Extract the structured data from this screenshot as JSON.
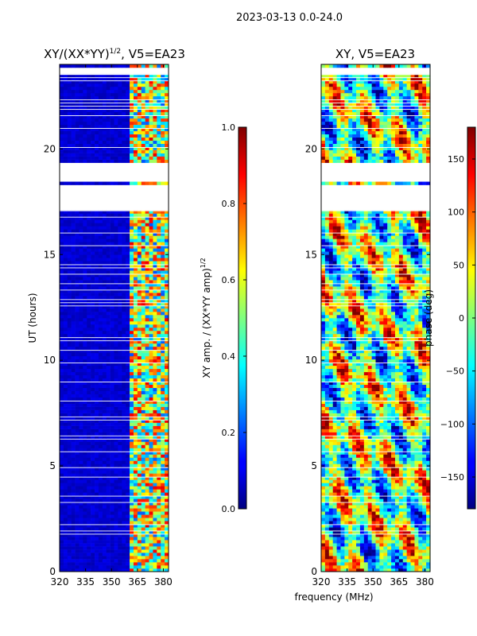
{
  "figure": {
    "suptitle": "2023-03-13 0.0-24.0",
    "shared_xlabel": "frequency (MHz)"
  },
  "chart_data": [
    {
      "type": "heatmap",
      "title_main": "XY/(XX*YY)",
      "title_sup": "1/2",
      "title_rest": ", V5=EA23",
      "xlabel": "",
      "ylabel": "UT (hours)",
      "xlim": [
        320,
        383
      ],
      "ylim": [
        0,
        24
      ],
      "xticks": [
        320,
        335,
        350,
        365,
        380
      ],
      "yticks": [
        0,
        5,
        10,
        15,
        20
      ],
      "colormap": "jet",
      "colorbar": {
        "label_main": "XY amp. / (XX*YY amp)",
        "label_sup": "1/2",
        "range": [
          0.0,
          1.0
        ],
        "ticks": [
          "0.0",
          "0.2",
          "0.4",
          "0.6",
          "0.8",
          "1.0"
        ],
        "tick_values": [
          0.0,
          0.2,
          0.4,
          0.6,
          0.8,
          1.0
        ]
      },
      "data_gaps_hours": [
        [
          17.1,
          18.3
        ],
        [
          18.5,
          19.3
        ],
        [
          23.65,
          23.8
        ]
      ],
      "description_bands": {
        "low_band_mhz": [
          320,
          361
        ],
        "low_band_value": 0.05,
        "high_band_mhz": [
          361,
          383
        ],
        "high_band_value_range": [
          0.2,
          0.9
        ]
      }
    },
    {
      "type": "heatmap",
      "title_main": "XY, V5=EA23",
      "xlabel": "frequency (MHz)",
      "ylabel": "",
      "xlim": [
        320,
        383
      ],
      "ylim": [
        0,
        24
      ],
      "xticks": [
        320,
        335,
        350,
        365,
        380
      ],
      "yticks": [
        0,
        5,
        10,
        15,
        20
      ],
      "colormap": "jet",
      "colorbar": {
        "label_main": "phase (deg)",
        "range": [
          -180,
          180
        ],
        "ticks": [
          "−150",
          "−100",
          "−50",
          "0",
          "50",
          "100",
          "150"
        ],
        "tick_values": [
          -150,
          -100,
          -50,
          0,
          50,
          100,
          150
        ]
      },
      "data_gaps_hours": [
        [
          17.1,
          18.3
        ],
        [
          18.5,
          19.3
        ],
        [
          23.65,
          23.8
        ]
      ]
    }
  ],
  "colors": {
    "jet_dark_blue": "#00007f",
    "jet_dark_red": "#7f0000"
  }
}
